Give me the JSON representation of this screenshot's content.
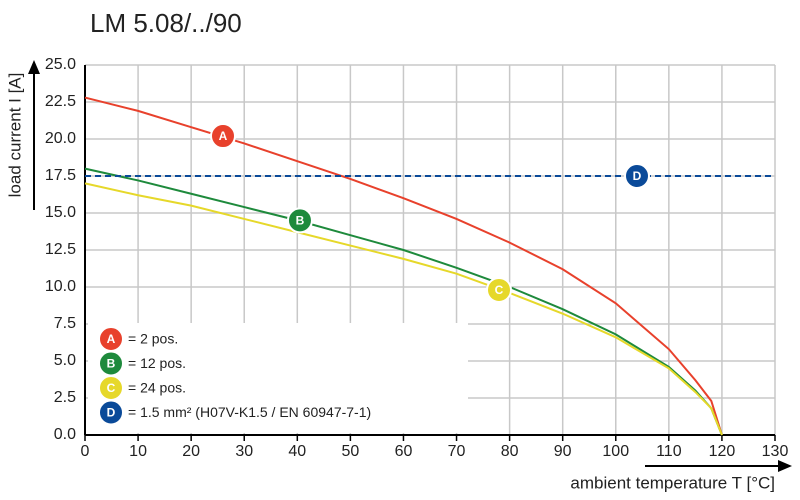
{
  "chart_data": {
    "type": "line",
    "title": "LM 5.08/../90",
    "y_label": "load current I [A]",
    "x_label": "ambient temperature T [°C]",
    "xlim": [
      0,
      130
    ],
    "xticks": [
      0,
      10,
      20,
      30,
      40,
      50,
      60,
      70,
      80,
      90,
      100,
      110,
      120,
      130
    ],
    "ylim": [
      0,
      25
    ],
    "yticks": [
      {
        "value": 0,
        "label": "0.0"
      },
      {
        "value": 2.5,
        "label": "2.5"
      },
      {
        "value": 5,
        "label": "5.0"
      },
      {
        "value": 7.5,
        "label": "7.5"
      },
      {
        "value": 10,
        "label": "10.0"
      },
      {
        "value": 12.5,
        "label": "12.5"
      },
      {
        "value": 15,
        "label": "15.0"
      },
      {
        "value": 17.5,
        "label": "17.5"
      },
      {
        "value": 20,
        "label": "20.0"
      },
      {
        "value": 22.5,
        "label": "22.5"
      },
      {
        "value": 25,
        "label": "25.0"
      }
    ],
    "grid": true,
    "series": [
      {
        "name": "= 2 pos.",
        "badge": "A",
        "color": "#e8412c",
        "dashed": false,
        "x": [
          0,
          10,
          20,
          30,
          40,
          50,
          60,
          70,
          80,
          90,
          100,
          110,
          115,
          118,
          120
        ],
        "values": [
          22.8,
          21.9,
          20.8,
          19.7,
          18.5,
          17.3,
          16.0,
          14.6,
          13.0,
          11.2,
          8.9,
          5.8,
          3.7,
          2.3,
          0
        ],
        "marker": {
          "x": 26,
          "y": 20.2
        }
      },
      {
        "name": "= 12 pos.",
        "badge": "B",
        "color": "#1e8a3c",
        "dashed": false,
        "x": [
          0,
          10,
          20,
          30,
          40,
          50,
          60,
          70,
          80,
          90,
          100,
          110,
          115,
          118,
          120
        ],
        "values": [
          18.0,
          17.2,
          16.3,
          15.4,
          14.5,
          13.5,
          12.5,
          11.3,
          10.0,
          8.5,
          6.8,
          4.6,
          3.0,
          1.8,
          0
        ],
        "marker": {
          "x": 40.5,
          "y": 14.5
        }
      },
      {
        "name": "= 24 pos.",
        "badge": "C",
        "color": "#e6d82a",
        "dashed": false,
        "x": [
          0,
          10,
          20,
          30,
          40,
          50,
          60,
          70,
          80,
          90,
          100,
          110,
          115,
          118,
          120
        ],
        "values": [
          17.0,
          16.2,
          15.5,
          14.6,
          13.7,
          12.8,
          11.9,
          10.9,
          9.6,
          8.2,
          6.6,
          4.5,
          2.9,
          1.8,
          0
        ],
        "marker": {
          "x": 78,
          "y": 9.8
        }
      },
      {
        "name": "= 1.5 mm² (H07V-K1.5 / EN 60947-7-1)",
        "badge": "D",
        "color": "#0a4a99",
        "dashed": true,
        "x": [
          0,
          130
        ],
        "values": [
          17.5,
          17.5
        ],
        "marker": {
          "x": 104,
          "y": 17.5
        }
      }
    ]
  }
}
